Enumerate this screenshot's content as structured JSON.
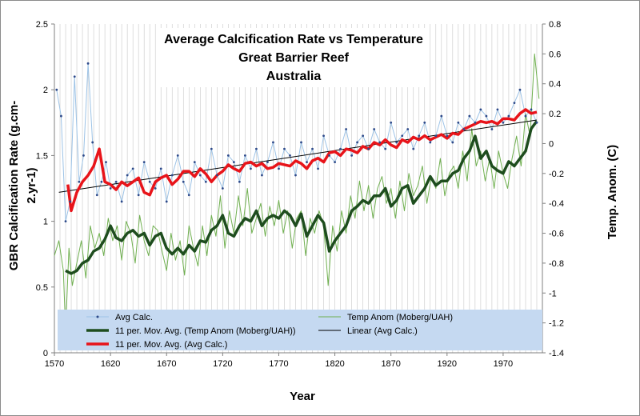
{
  "chart_data": {
    "type": "line",
    "title": [
      "Average Calcification Rate vs Temperature",
      "Great Barrier Reef",
      "Australia"
    ],
    "xlabel": "Year",
    "ylabel_left": [
      "GBR Calcification Rate (g.cm-",
      "2.yr-1)"
    ],
    "ylabel_right": "Temp. Anom. (C)",
    "xlim": [
      1570,
      2005
    ],
    "ylim_left": [
      0,
      2.5
    ],
    "ylim_right": [
      -1.4,
      0.8
    ],
    "x_ticks": [
      "1570",
      "1620",
      "1670",
      "1720",
      "1770",
      "1820",
      "1870",
      "1920",
      "1970"
    ],
    "y_left_ticks": [
      "0",
      "0.5",
      "1",
      "1.5",
      "2",
      "2.5"
    ],
    "y_right_ticks": [
      "-1.4",
      "-1.2",
      "-1",
      "-0.8",
      "-0.6",
      "-0.4",
      "-0.2",
      "0",
      "0.2",
      "0.4",
      "0.6",
      "0.8"
    ],
    "grid": "vertical gridlines at minor year intervals",
    "legend_placement": "bottom",
    "series": [
      {
        "name": "Avg Calc.",
        "axis": "left",
        "color": "#9dc3e6",
        "marker_color": "#2e4a8a",
        "x": [
          1572,
          1576,
          1580,
          1584,
          1588,
          1592,
          1596,
          1600,
          1604,
          1608,
          1612,
          1616,
          1620,
          1625,
          1630,
          1635,
          1640,
          1645,
          1650,
          1655,
          1660,
          1665,
          1670,
          1675,
          1680,
          1685,
          1690,
          1695,
          1700,
          1705,
          1710,
          1715,
          1720,
          1725,
          1730,
          1735,
          1740,
          1745,
          1750,
          1755,
          1760,
          1765,
          1770,
          1775,
          1780,
          1785,
          1790,
          1795,
          1800,
          1805,
          1810,
          1815,
          1820,
          1825,
          1830,
          1835,
          1840,
          1845,
          1850,
          1855,
          1860,
          1865,
          1870,
          1875,
          1880,
          1885,
          1890,
          1895,
          1900,
          1905,
          1910,
          1915,
          1920,
          1925,
          1930,
          1935,
          1940,
          1945,
          1950,
          1955,
          1960,
          1965,
          1970,
          1975,
          1980,
          1985,
          1990,
          1995,
          2000
        ],
        "y": [
          2.0,
          1.8,
          1.0,
          1.15,
          2.1,
          1.3,
          1.5,
          2.2,
          1.6,
          1.2,
          1.3,
          1.45,
          1.25,
          1.3,
          1.15,
          1.35,
          1.4,
          1.2,
          1.45,
          1.3,
          1.25,
          1.4,
          1.15,
          1.35,
          1.5,
          1.3,
          1.2,
          1.45,
          1.35,
          1.3,
          1.55,
          1.35,
          1.25,
          1.5,
          1.45,
          1.3,
          1.5,
          1.4,
          1.55,
          1.35,
          1.45,
          1.6,
          1.4,
          1.55,
          1.5,
          1.35,
          1.6,
          1.45,
          1.55,
          1.4,
          1.65,
          1.5,
          1.45,
          1.55,
          1.7,
          1.5,
          1.6,
          1.65,
          1.55,
          1.7,
          1.6,
          1.55,
          1.75,
          1.6,
          1.65,
          1.7,
          1.55,
          1.65,
          1.75,
          1.6,
          1.65,
          1.8,
          1.65,
          1.6,
          1.75,
          1.7,
          1.8,
          1.75,
          1.85,
          1.8,
          1.7,
          1.85,
          1.75,
          1.8,
          1.9,
          2.0,
          1.8,
          1.85,
          1.75
        ]
      },
      {
        "name": "11 per. Mov. Avg. (Temp Anom (Moberg/UAH))",
        "axis": "right",
        "color": "#1e4d1e",
        "x": [
          1580,
          1585,
          1590,
          1595,
          1600,
          1605,
          1610,
          1615,
          1620,
          1625,
          1630,
          1635,
          1640,
          1645,
          1650,
          1655,
          1660,
          1665,
          1670,
          1675,
          1680,
          1685,
          1690,
          1695,
          1700,
          1705,
          1710,
          1715,
          1720,
          1725,
          1730,
          1735,
          1740,
          1745,
          1750,
          1755,
          1760,
          1765,
          1770,
          1775,
          1780,
          1785,
          1790,
          1795,
          1800,
          1805,
          1810,
          1815,
          1820,
          1825,
          1830,
          1835,
          1840,
          1845,
          1850,
          1855,
          1860,
          1865,
          1870,
          1875,
          1880,
          1885,
          1890,
          1895,
          1900,
          1905,
          1910,
          1915,
          1920,
          1925,
          1930,
          1935,
          1940,
          1945,
          1950,
          1955,
          1960,
          1965,
          1970,
          1975,
          1980,
          1985,
          1990,
          1995,
          2000
        ],
        "y": [
          -0.85,
          -0.87,
          -0.85,
          -0.8,
          -0.78,
          -0.72,
          -0.7,
          -0.64,
          -0.55,
          -0.63,
          -0.65,
          -0.6,
          -0.58,
          -0.62,
          -0.6,
          -0.68,
          -0.62,
          -0.6,
          -0.7,
          -0.74,
          -0.7,
          -0.74,
          -0.68,
          -0.72,
          -0.65,
          -0.66,
          -0.58,
          -0.55,
          -0.48,
          -0.6,
          -0.62,
          -0.55,
          -0.5,
          -0.52,
          -0.45,
          -0.55,
          -0.5,
          -0.48,
          -0.5,
          -0.45,
          -0.48,
          -0.55,
          -0.47,
          -0.62,
          -0.55,
          -0.48,
          -0.53,
          -0.72,
          -0.65,
          -0.6,
          -0.55,
          -0.45,
          -0.42,
          -0.38,
          -0.4,
          -0.35,
          -0.35,
          -0.3,
          -0.42,
          -0.38,
          -0.3,
          -0.28,
          -0.4,
          -0.35,
          -0.3,
          -0.22,
          -0.28,
          -0.25,
          -0.25,
          -0.2,
          -0.18,
          -0.1,
          -0.05,
          0.05,
          -0.1,
          -0.05,
          -0.15,
          -0.18,
          -0.2,
          -0.12,
          -0.15,
          -0.1,
          -0.05,
          0.1,
          0.15
        ]
      },
      {
        "name": "11 per. Mov. Avg. (Avg Calc.)",
        "axis": "left",
        "color": "#e8141a",
        "x": [
          1582,
          1585,
          1590,
          1595,
          1600,
          1605,
          1610,
          1615,
          1620,
          1625,
          1630,
          1635,
          1640,
          1645,
          1650,
          1655,
          1660,
          1665,
          1670,
          1675,
          1680,
          1685,
          1690,
          1695,
          1700,
          1705,
          1710,
          1715,
          1720,
          1725,
          1730,
          1735,
          1740,
          1745,
          1750,
          1755,
          1760,
          1765,
          1770,
          1775,
          1780,
          1785,
          1790,
          1795,
          1800,
          1805,
          1810,
          1815,
          1820,
          1825,
          1830,
          1835,
          1840,
          1845,
          1850,
          1855,
          1860,
          1865,
          1870,
          1875,
          1880,
          1885,
          1890,
          1895,
          1900,
          1905,
          1910,
          1915,
          1920,
          1925,
          1930,
          1935,
          1940,
          1945,
          1950,
          1955,
          1960,
          1965,
          1970,
          1975,
          1980,
          1985,
          1990,
          1995,
          2000
        ],
        "y": [
          1.28,
          1.08,
          1.22,
          1.3,
          1.35,
          1.42,
          1.55,
          1.3,
          1.28,
          1.24,
          1.3,
          1.27,
          1.3,
          1.33,
          1.22,
          1.2,
          1.3,
          1.33,
          1.35,
          1.28,
          1.32,
          1.38,
          1.38,
          1.34,
          1.4,
          1.36,
          1.3,
          1.35,
          1.38,
          1.43,
          1.4,
          1.38,
          1.44,
          1.45,
          1.42,
          1.44,
          1.4,
          1.41,
          1.44,
          1.43,
          1.42,
          1.46,
          1.44,
          1.4,
          1.46,
          1.48,
          1.45,
          1.52,
          1.53,
          1.5,
          1.55,
          1.54,
          1.52,
          1.57,
          1.55,
          1.6,
          1.58,
          1.62,
          1.58,
          1.56,
          1.62,
          1.6,
          1.64,
          1.62,
          1.65,
          1.62,
          1.64,
          1.66,
          1.63,
          1.67,
          1.66,
          1.7,
          1.72,
          1.74,
          1.76,
          1.75,
          1.76,
          1.74,
          1.78,
          1.78,
          1.77,
          1.82,
          1.85,
          1.82,
          1.83
        ]
      },
      {
        "name": "Temp Anom (Moberg/UAH)",
        "axis": "right",
        "color": "#70b050",
        "x": [
          1570,
          1574,
          1578,
          1580,
          1583,
          1586,
          1590,
          1594,
          1598,
          1602,
          1606,
          1610,
          1614,
          1618,
          1622,
          1626,
          1630,
          1634,
          1638,
          1642,
          1646,
          1650,
          1654,
          1658,
          1662,
          1666,
          1670,
          1674,
          1678,
          1682,
          1686,
          1690,
          1694,
          1698,
          1702,
          1706,
          1710,
          1714,
          1718,
          1722,
          1726,
          1730,
          1734,
          1738,
          1742,
          1746,
          1750,
          1754,
          1758,
          1762,
          1766,
          1770,
          1774,
          1778,
          1782,
          1786,
          1790,
          1794,
          1798,
          1802,
          1806,
          1810,
          1814,
          1818,
          1822,
          1826,
          1830,
          1834,
          1838,
          1842,
          1846,
          1850,
          1854,
          1858,
          1862,
          1866,
          1870,
          1874,
          1878,
          1882,
          1886,
          1890,
          1894,
          1898,
          1902,
          1906,
          1910,
          1914,
          1918,
          1922,
          1926,
          1930,
          1934,
          1938,
          1942,
          1946,
          1950,
          1954,
          1958,
          1962,
          1966,
          1970,
          1974,
          1978,
          1982,
          1986,
          1990,
          1994,
          1998,
          2002
        ],
        "y": [
          -0.75,
          -0.65,
          -0.85,
          -1.25,
          -0.7,
          -0.95,
          -0.8,
          -0.65,
          -0.9,
          -0.55,
          -0.7,
          -0.6,
          -0.75,
          -0.5,
          -0.65,
          -0.55,
          -0.78,
          -0.52,
          -0.6,
          -0.8,
          -0.48,
          -0.65,
          -0.75,
          -0.55,
          -0.58,
          -0.72,
          -0.85,
          -0.6,
          -0.78,
          -0.65,
          -0.88,
          -0.55,
          -0.7,
          -0.82,
          -0.55,
          -0.75,
          -0.48,
          -0.62,
          -0.35,
          -0.7,
          -0.45,
          -0.6,
          -0.35,
          -0.55,
          -0.3,
          -0.6,
          -0.5,
          -0.4,
          -0.62,
          -0.42,
          -0.55,
          -0.38,
          -0.6,
          -0.45,
          -0.7,
          -0.5,
          -0.45,
          -0.75,
          -0.5,
          -0.6,
          -0.45,
          -0.55,
          -0.95,
          -0.55,
          -0.72,
          -0.45,
          -0.6,
          -0.35,
          -0.5,
          -0.25,
          -0.45,
          -0.28,
          -0.5,
          -0.3,
          -0.22,
          -0.4,
          -0.3,
          -0.5,
          -0.25,
          -0.45,
          -0.2,
          -0.35,
          -0.28,
          -0.15,
          -0.4,
          -0.22,
          -0.3,
          -0.1,
          -0.35,
          -0.2,
          -0.15,
          -0.3,
          -0.05,
          -0.25,
          0.1,
          -0.15,
          -0.05,
          -0.25,
          -0.1,
          -0.3,
          -0.05,
          -0.2,
          -0.3,
          -0.1,
          0.05,
          -0.15,
          0.2,
          0.05,
          0.6,
          0.3
        ]
      },
      {
        "name": "Linear (Avg Calc.)",
        "axis": "left",
        "color": "#000000",
        "x": [
          1574,
          2000
        ],
        "y": [
          1.22,
          1.77
        ]
      }
    ]
  }
}
